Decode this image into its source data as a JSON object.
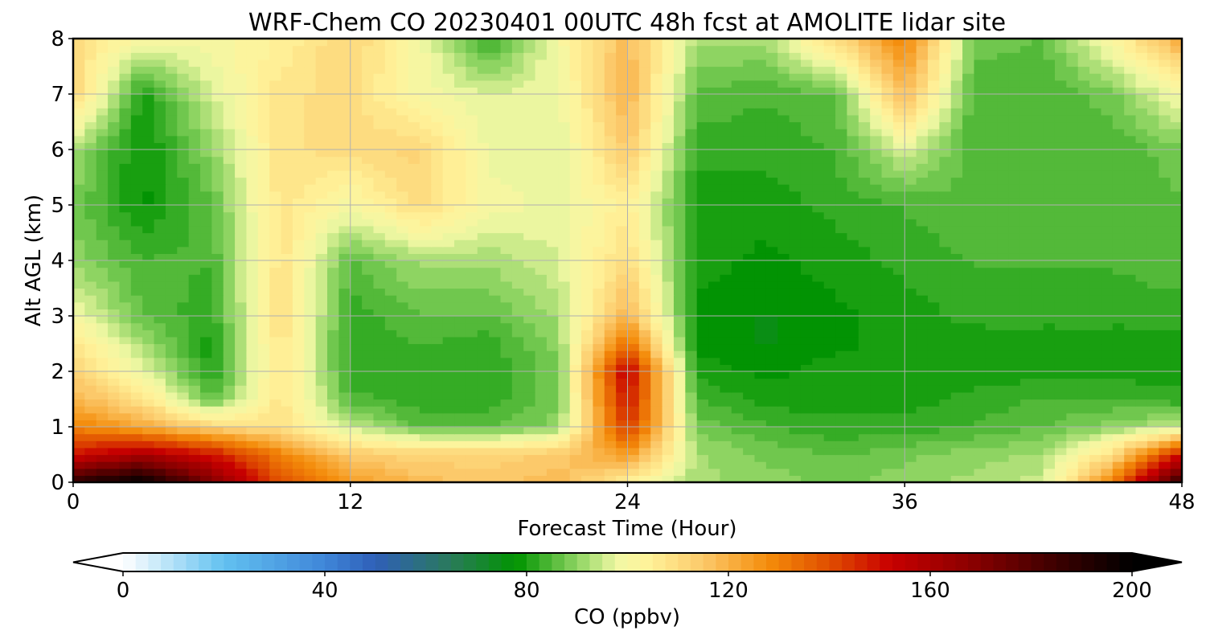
{
  "chart_data": {
    "type": "heatmap",
    "title": "WRF-Chem CO  20230401 00UTC 48h fcst at AMOLITE lidar site",
    "xlabel": "Forecast Time (Hour)",
    "ylabel": "Alt AGL (km)",
    "xlim": [
      0,
      48
    ],
    "ylim": [
      0,
      8
    ],
    "x_ticks": [
      0,
      12,
      24,
      36,
      48
    ],
    "y_ticks": [
      0,
      1,
      2,
      3,
      4,
      5,
      6,
      7,
      8
    ],
    "grid": true,
    "x": [
      0,
      3,
      6,
      9,
      12,
      15,
      18,
      21,
      24,
      27,
      30,
      33,
      36,
      39,
      42,
      45,
      48
    ],
    "y": [
      0,
      0.5,
      1,
      1.5,
      2,
      2.5,
      3,
      4,
      5,
      6,
      7,
      8
    ],
    "z": [
      [
        190,
        200,
        170,
        140,
        125,
        118,
        115,
        118,
        105,
        92,
        90,
        88,
        90,
        92,
        95,
        130,
        190
      ],
      [
        150,
        160,
        150,
        130,
        115,
        112,
        112,
        115,
        125,
        92,
        88,
        86,
        88,
        90,
        92,
        110,
        150
      ],
      [
        130,
        122,
        112,
        108,
        95,
        86,
        86,
        90,
        145,
        88,
        84,
        82,
        82,
        84,
        86,
        90,
        95
      ],
      [
        120,
        108,
        86,
        108,
        85,
        82,
        82,
        88,
        150,
        84,
        80,
        80,
        80,
        82,
        84,
        84,
        82
      ],
      [
        112,
        98,
        80,
        108,
        82,
        82,
        82,
        88,
        155,
        80,
        78,
        80,
        80,
        80,
        80,
        80,
        80
      ],
      [
        108,
        92,
        80,
        108,
        82,
        84,
        82,
        90,
        135,
        78,
        76,
        78,
        80,
        80,
        80,
        80,
        80
      ],
      [
        100,
        86,
        82,
        110,
        82,
        86,
        86,
        92,
        120,
        78,
        76,
        78,
        80,
        82,
        82,
        82,
        82
      ],
      [
        90,
        84,
        84,
        108,
        86,
        92,
        92,
        96,
        110,
        80,
        78,
        80,
        82,
        84,
        84,
        84,
        86
      ],
      [
        88,
        78,
        86,
        108,
        100,
        110,
        100,
        98,
        105,
        80,
        80,
        82,
        84,
        86,
        86,
        84,
        86
      ],
      [
        92,
        78,
        90,
        108,
        110,
        112,
        98,
        96,
        115,
        82,
        82,
        84,
        96,
        84,
        84,
        84,
        88
      ],
      [
        112,
        80,
        96,
        108,
        110,
        100,
        96,
        98,
        120,
        86,
        84,
        86,
        118,
        84,
        84,
        88,
        100
      ],
      [
        110,
        100,
        100,
        104,
        112,
        100,
        82,
        100,
        118,
        92,
        92,
        110,
        130,
        88,
        86,
        102,
        122
      ]
    ],
    "colorbar": {
      "label": "CO  (ppbv)",
      "min": 0,
      "max": 200,
      "ticks": [
        0,
        40,
        80,
        120,
        160,
        200
      ],
      "extend": "both",
      "stops": [
        {
          "v": 0,
          "c": "#ffffff"
        },
        {
          "v": 20,
          "c": "#62c1f0"
        },
        {
          "v": 40,
          "c": "#3f86d8"
        },
        {
          "v": 50,
          "c": "#2f5fb8"
        },
        {
          "v": 65,
          "c": "#2a7a5a"
        },
        {
          "v": 78,
          "c": "#009400"
        },
        {
          "v": 90,
          "c": "#8ed462"
        },
        {
          "v": 98,
          "c": "#f1f8a4"
        },
        {
          "v": 104,
          "c": "#fff39a"
        },
        {
          "v": 115,
          "c": "#fcc96a"
        },
        {
          "v": 128,
          "c": "#f48c0a"
        },
        {
          "v": 140,
          "c": "#e04e00"
        },
        {
          "v": 152,
          "c": "#c80000"
        },
        {
          "v": 168,
          "c": "#8b0000"
        },
        {
          "v": 185,
          "c": "#3c0000"
        },
        {
          "v": 200,
          "c": "#000000"
        }
      ]
    }
  }
}
